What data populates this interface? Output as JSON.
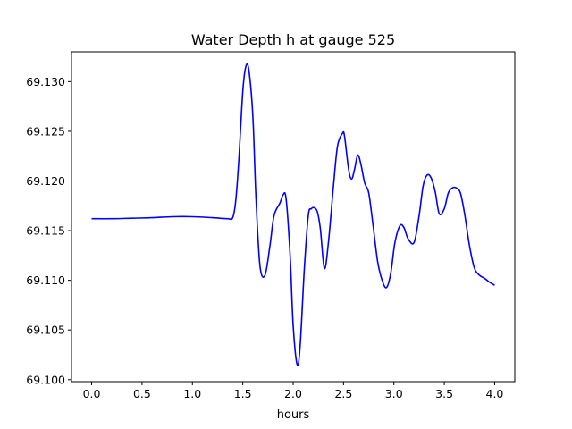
{
  "chart_data": {
    "type": "line",
    "title": "Water Depth h at gauge 525",
    "xlabel": "hours",
    "ylabel": "",
    "xlim": [
      -0.2,
      4.2
    ],
    "ylim": [
      69.0998,
      69.133
    ],
    "xticks": [
      0.0,
      0.5,
      1.0,
      1.5,
      2.0,
      2.5,
      3.0,
      3.5,
      4.0
    ],
    "xtick_labels": [
      "0.0",
      "0.5",
      "1.0",
      "1.5",
      "2.0",
      "2.5",
      "3.0",
      "3.5",
      "4.0"
    ],
    "yticks": [
      69.1,
      69.105,
      69.11,
      69.115,
      69.12,
      69.125,
      69.13
    ],
    "ytick_labels": [
      "69.100",
      "69.105",
      "69.110",
      "69.115",
      "69.120",
      "69.125",
      "69.130"
    ],
    "grid": false,
    "series": [
      {
        "name": "",
        "color": "#0000ff",
        "x": [
          0.0,
          0.2,
          0.4,
          0.6,
          0.8,
          1.0,
          1.2,
          1.35,
          1.4,
          1.43,
          1.46,
          1.5,
          1.53,
          1.56,
          1.6,
          1.63,
          1.67,
          1.72,
          1.77,
          1.81,
          1.87,
          1.9,
          1.93,
          1.97,
          2.0,
          2.04,
          2.07,
          2.11,
          2.15,
          2.18,
          2.21,
          2.24,
          2.27,
          2.31,
          2.35,
          2.4,
          2.44,
          2.49,
          2.51,
          2.55,
          2.58,
          2.61,
          2.64,
          2.67,
          2.71,
          2.75,
          2.79,
          2.84,
          2.89,
          2.93,
          2.97,
          3.01,
          3.06,
          3.1,
          3.14,
          3.2,
          3.25,
          3.29,
          3.33,
          3.37,
          3.41,
          3.45,
          3.5,
          3.54,
          3.58,
          3.62,
          3.66,
          3.7,
          3.75,
          3.8,
          3.85,
          3.9,
          3.95,
          4.0
        ],
        "y": [
          69.1162,
          69.1162,
          69.11625,
          69.1163,
          69.1164,
          69.1164,
          69.1163,
          69.1162,
          69.1163,
          69.118,
          69.122,
          69.129,
          69.1315,
          69.1312,
          69.1265,
          69.1185,
          69.1115,
          69.1105,
          69.1135,
          69.1165,
          69.1178,
          69.1186,
          69.1182,
          69.1125,
          69.1055,
          69.1015,
          69.1035,
          69.111,
          69.1165,
          69.1172,
          69.1173,
          69.1169,
          69.1152,
          69.1112,
          69.1138,
          69.1195,
          69.1235,
          69.1248,
          69.1245,
          69.1212,
          69.1202,
          69.1212,
          69.1226,
          69.1218,
          69.1198,
          69.1188,
          69.1158,
          69.1118,
          69.1098,
          69.1093,
          69.1108,
          69.1138,
          69.1155,
          69.1153,
          69.1142,
          69.1138,
          69.1165,
          69.1195,
          69.1206,
          69.1203,
          69.1189,
          69.1167,
          69.1172,
          69.1188,
          69.1193,
          69.1193,
          69.1188,
          69.1168,
          69.1135,
          69.1112,
          69.1105,
          69.1102,
          69.1098,
          69.1095
        ]
      }
    ]
  }
}
